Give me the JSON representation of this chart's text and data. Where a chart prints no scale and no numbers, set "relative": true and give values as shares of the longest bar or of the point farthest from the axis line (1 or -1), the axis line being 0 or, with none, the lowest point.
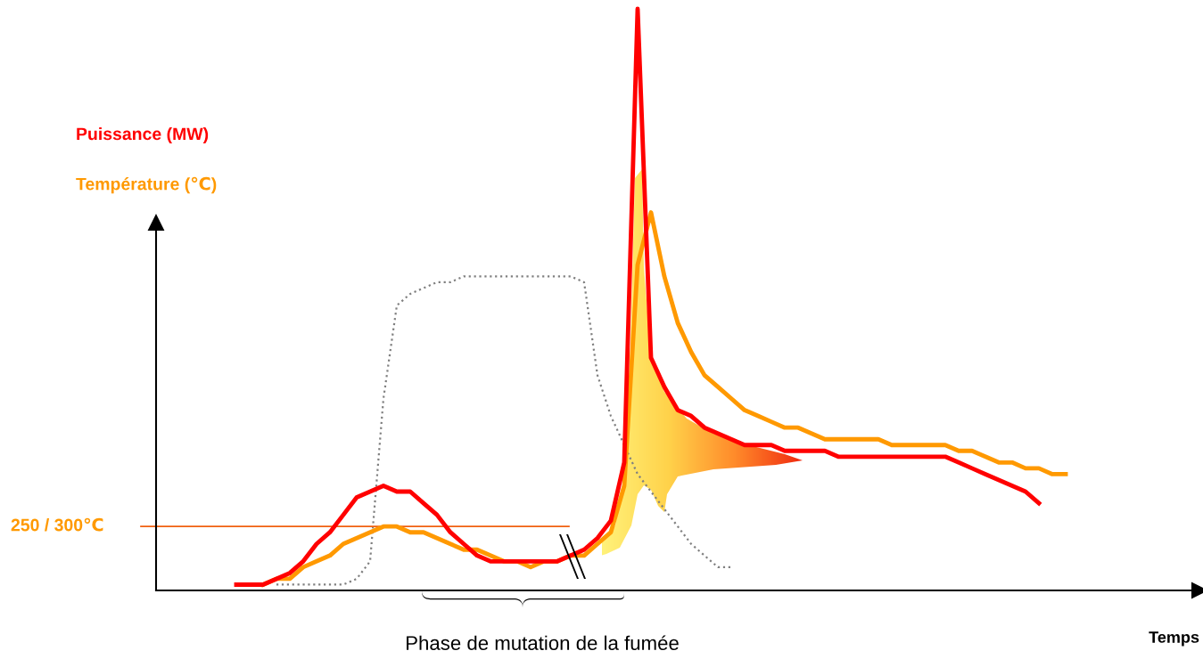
{
  "chart_data": {
    "type": "line",
    "relative": true,
    "xlabel": "Temps",
    "categories": [
      null,
      null,
      null,
      null,
      null,
      null,
      null,
      null,
      null,
      null,
      null,
      null,
      null,
      null,
      null,
      null,
      null,
      null,
      null,
      null,
      null,
      null,
      null,
      null,
      null,
      null,
      null,
      null,
      null,
      null,
      null,
      null,
      null,
      null,
      null,
      null,
      null,
      null,
      null,
      null,
      null,
      null,
      null,
      null,
      null,
      null,
      null,
      null,
      null,
      null,
      null,
      null,
      null,
      null,
      null,
      null,
      null,
      null,
      null,
      null,
      null,
      null,
      null,
      null,
      null,
      null,
      null,
      null,
      null,
      null,
      null,
      null,
      null,
      null,
      null,
      null,
      null,
      null,
      null
    ],
    "series": [
      {
        "color": "#808080",
        "line_style": "dotted",
        "values": [
          null,
          null,
          null,
          null,
          null,
          null,
          null,
          null,
          null,
          0.01,
          0.01,
          0.01,
          0.01,
          0.01,
          0.01,
          0.02,
          0.05,
          0.33,
          0.49,
          0.51,
          0.52,
          0.53,
          0.53,
          0.54,
          0.54,
          0.54,
          0.54,
          0.54,
          0.54,
          0.54,
          0.54,
          0.54,
          0.53,
          0.37,
          0.3,
          0.25,
          0.2,
          0.17,
          0.14,
          0.11,
          0.08,
          0.06,
          0.04,
          0.04,
          null,
          null,
          null,
          null,
          null,
          null,
          null,
          null,
          null,
          null,
          null,
          null,
          null,
          null,
          null,
          null,
          null,
          null,
          null,
          null,
          null,
          null,
          null,
          null,
          null,
          null,
          null,
          null,
          null,
          null,
          null,
          null,
          null,
          null,
          null
        ]
      },
      {
        "name": "Température (℃)",
        "color": "#ff9900",
        "line_style": "solid",
        "values": [
          null,
          null,
          null,
          null,
          null,
          null,
          null,
          null,
          0.01,
          0.02,
          0.02,
          0.04,
          0.05,
          0.06,
          0.08,
          0.09,
          0.1,
          0.11,
          0.11,
          0.1,
          0.1,
          0.09,
          0.08,
          0.07,
          0.07,
          0.06,
          0.05,
          0.05,
          0.04,
          0.05,
          0.05,
          0.06,
          0.06,
          0.08,
          0.1,
          0.18,
          0.56,
          0.65,
          0.54,
          0.46,
          0.41,
          0.37,
          0.35,
          0.33,
          0.31,
          0.3,
          0.29,
          0.28,
          0.28,
          0.27,
          0.26,
          0.26,
          0.26,
          0.26,
          0.26,
          0.25,
          0.25,
          0.25,
          0.25,
          0.25,
          0.24,
          0.24,
          0.23,
          0.22,
          0.22,
          0.21,
          0.21,
          0.2,
          0.2,
          null,
          null,
          null,
          null,
          null,
          null,
          null,
          null,
          null,
          null
        ]
      },
      {
        "name": "Puissance (MW)",
        "color": "#ff0000",
        "line_style": "solid",
        "values": [
          null,
          null,
          null,
          null,
          null,
          null,
          0.01,
          0.01,
          0.01,
          0.02,
          0.03,
          0.05,
          0.08,
          0.1,
          0.13,
          0.16,
          0.17,
          0.18,
          0.17,
          0.17,
          0.15,
          0.13,
          0.1,
          0.08,
          0.06,
          0.05,
          0.05,
          0.05,
          0.05,
          0.05,
          0.05,
          0.06,
          0.07,
          0.09,
          0.12,
          0.22,
          1.0,
          0.4,
          0.35,
          0.31,
          0.3,
          0.28,
          0.27,
          0.26,
          0.25,
          0.25,
          0.25,
          0.24,
          0.24,
          0.24,
          0.24,
          0.23,
          0.23,
          0.23,
          0.23,
          0.23,
          0.23,
          0.23,
          0.23,
          0.23,
          0.22,
          0.21,
          0.2,
          0.19,
          0.18,
          0.17,
          0.15,
          null,
          null,
          null,
          null,
          null,
          null,
          null,
          null,
          null,
          null,
          null,
          null
        ]
      }
    ],
    "ref_lines": [
      {
        "axis": "y",
        "value": 0.11,
        "label": "250 / 300℃",
        "color": "#f06010"
      }
    ],
    "annotations": [
      "Phase de mutation de la fumée"
    ]
  }
}
